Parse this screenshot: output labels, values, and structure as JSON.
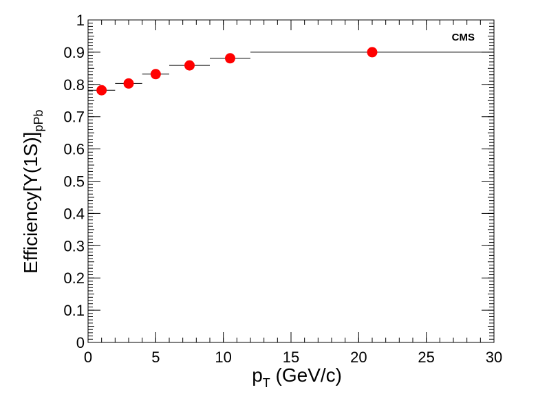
{
  "chart_data": {
    "type": "scatter",
    "badge": "CMS",
    "xlabel": {
      "main": "p",
      "sub": "T",
      "rest": " (GeV/c)"
    },
    "ylabel": {
      "main": "Efficiency[Υ(1S)]",
      "sub": "pPb"
    },
    "xlim": [
      0,
      30
    ],
    "ylim": [
      0,
      1
    ],
    "x_ticks": [
      "0",
      "5",
      "10",
      "15",
      "20",
      "25",
      "30"
    ],
    "y_ticks": [
      "0",
      "0.1",
      "0.2",
      "0.3",
      "0.4",
      "0.5",
      "0.6",
      "0.7",
      "0.8",
      "0.9",
      "1"
    ],
    "marker_color": "#ff0000",
    "grid": false,
    "points": [
      {
        "x": 1,
        "xlow": 0,
        "xhigh": 2,
        "y": 0.782
      },
      {
        "x": 3,
        "xlow": 2,
        "xhigh": 4,
        "y": 0.803
      },
      {
        "x": 5,
        "xlow": 4,
        "xhigh": 6,
        "y": 0.832
      },
      {
        "x": 7.5,
        "xlow": 6,
        "xhigh": 9,
        "y": 0.859
      },
      {
        "x": 10.5,
        "xlow": 9,
        "xhigh": 12,
        "y": 0.881
      },
      {
        "x": 21,
        "xlow": 12,
        "xhigh": 30,
        "y": 0.9
      }
    ]
  }
}
